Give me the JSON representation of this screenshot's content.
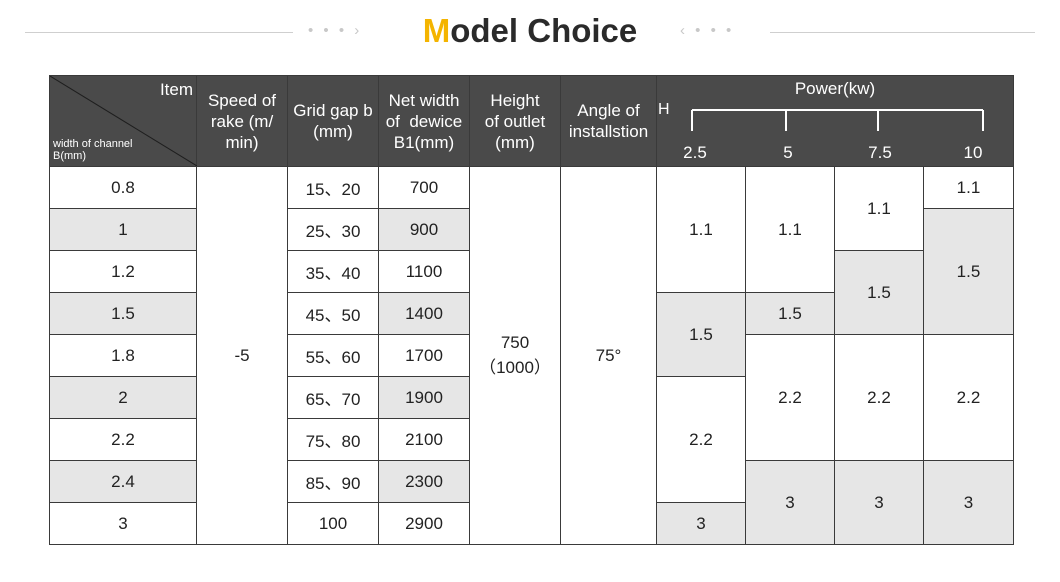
{
  "title": {
    "first_letter": "M",
    "rest": "odel Choice",
    "accent": "#f4b400"
  },
  "decor": {
    "left": "• • • ›",
    "right": "‹ • • •"
  },
  "header": {
    "corner_item": "Item",
    "corner_channel": "width of channel",
    "corner_channel_unit": "B(mm)",
    "speed": [
      "Speed of",
      "rake (m/",
      "min)"
    ],
    "grid_gap": [
      "Grid gap b",
      "(mm)"
    ],
    "net_width": [
      "Net width",
      "of  dewice",
      "B1(mm)"
    ],
    "height_outlet": [
      "Height",
      "of outlet",
      "(mm)"
    ],
    "angle": [
      "Angle of",
      "installstion"
    ],
    "power_label": "Power(kw)",
    "h_label": "H",
    "power_values": [
      "2.5",
      "5",
      "7.5",
      "10"
    ]
  },
  "rows": [
    {
      "channel": "0.8",
      "grid": "15、20",
      "net": "700"
    },
    {
      "channel": "1",
      "grid": "25、30",
      "net": "900"
    },
    {
      "channel": "1.2",
      "grid": "35、40",
      "net": "1100"
    },
    {
      "channel": "1.5",
      "grid": "45、50",
      "net": "1400"
    },
    {
      "channel": "1.8",
      "grid": "55、60",
      "net": "1700"
    },
    {
      "channel": "2",
      "grid": "65、70",
      "net": "1900"
    },
    {
      "channel": "2.2",
      "grid": "75、80",
      "net": "2100"
    },
    {
      "channel": "2.4",
      "grid": "85、90",
      "net": "2300"
    },
    {
      "channel": "3",
      "grid": "100",
      "net": "2900"
    }
  ],
  "merged": {
    "speed": "-5",
    "height_main": "750",
    "height_alt": "（1000）",
    "angle": "75°"
  },
  "power": {
    "p25": [
      "1.1",
      "1.5",
      "2.2",
      "3"
    ],
    "p5": [
      "1.1",
      "1.5",
      "2.2",
      "3"
    ],
    "p75": [
      "1.1",
      "1.5",
      "2.2",
      "3"
    ],
    "p10": [
      "1.1",
      "1.5",
      "2.2",
      "3"
    ]
  }
}
